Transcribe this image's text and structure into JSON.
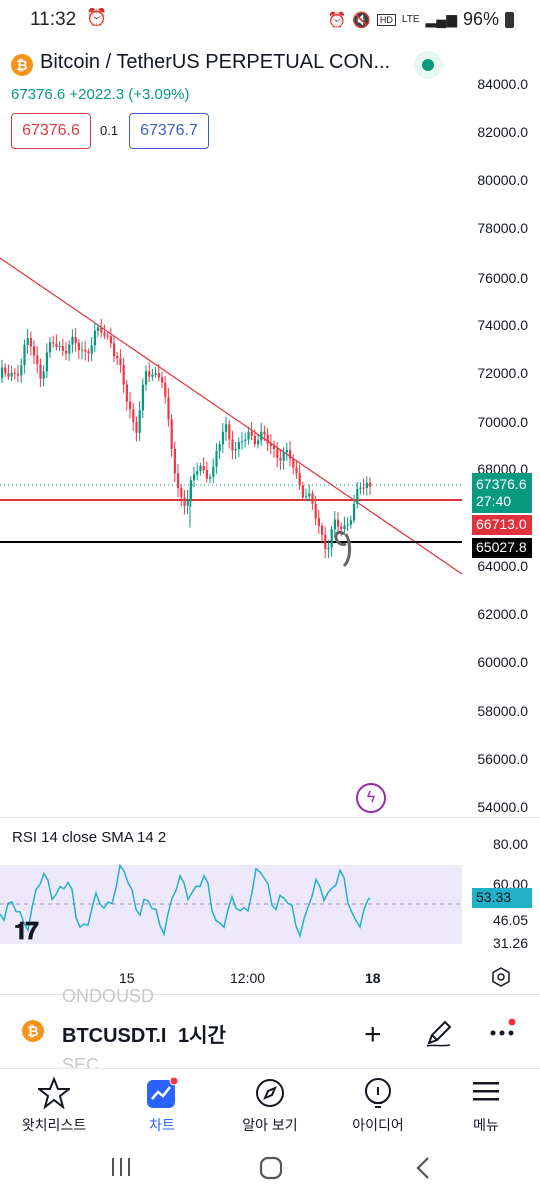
{
  "status_bar": {
    "time": "11:32",
    "battery": "96%",
    "network": "LTE"
  },
  "header": {
    "title": "Bitcoin / TetherUS PERPETUAL CON...",
    "last_price": "67376.6",
    "change": "+2022.3 (+3.09%)",
    "bid": "67376.6",
    "spread": "0.1",
    "ask": "67376.7"
  },
  "y_axis": [
    "84000.0",
    "82000.0",
    "80000.0",
    "78000.0",
    "76000.0",
    "74000.0",
    "72000.0",
    "70000.0",
    "68000.0",
    "64000.0",
    "62000.0",
    "60000.0",
    "58000.0",
    "56000.0",
    "54000.0"
  ],
  "price_tags": {
    "current": {
      "price": "67376.6",
      "countdown": "27:40",
      "color": "#089981"
    },
    "red_line": {
      "price": "66713.0",
      "color": "#e0313c"
    },
    "black_line": {
      "price": "65027.8",
      "color": "#000000"
    }
  },
  "rsi": {
    "label": "RSI 14 close SMA 14 2",
    "levels": [
      "80.00",
      "60.00",
      "46.05",
      "31.26"
    ],
    "current": "53.33",
    "band_color": "#ede9fb"
  },
  "x_axis": [
    "15",
    "12:00",
    "18"
  ],
  "ticker_row": {
    "ghost_top": "ONDOUSD",
    "symbol": "BTCUSDT.I",
    "interval": "1시간",
    "ghost_bottom": "SEC"
  },
  "nav": [
    {
      "label": "왓치리스트",
      "icon": "star-icon"
    },
    {
      "label": "차트",
      "icon": "chart-icon"
    },
    {
      "label": "알아 보기",
      "icon": "compass-icon"
    },
    {
      "label": "아이디어",
      "icon": "bulb-icon"
    },
    {
      "label": "메뉴",
      "icon": "menu-icon"
    }
  ],
  "colors": {
    "up": "#089981",
    "down": "#f23645",
    "accent": "#2962ff",
    "trendline": "#e0313c"
  }
}
